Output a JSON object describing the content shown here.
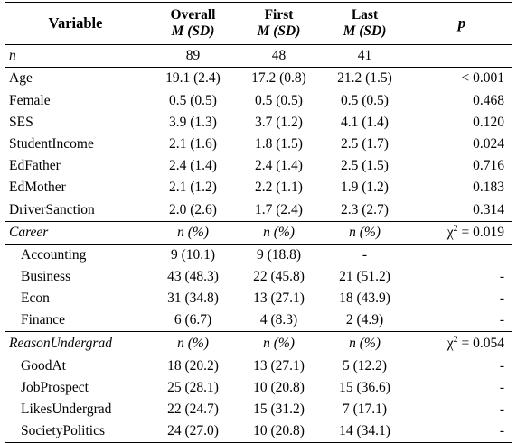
{
  "header": {
    "variable": "Variable",
    "overall": "Overall",
    "first": "First",
    "last": "Last",
    "p": "p",
    "msd": "M (SD)"
  },
  "n_row": {
    "label": "n",
    "overall": "89",
    "first": "48",
    "last": "41",
    "p": ""
  },
  "continuous": [
    {
      "label": "Age",
      "overall": "19.1 (2.4)",
      "first": "17.2 (0.8)",
      "last": "21.2 (1.5)",
      "p": "< 0.001"
    },
    {
      "label": "Female",
      "overall": "0.5 (0.5)",
      "first": "0.5 (0.5)",
      "last": "0.5 (0.5)",
      "p": "0.468"
    },
    {
      "label": "SES",
      "overall": "3.9 (1.3)",
      "first": "3.7 (1.2)",
      "last": "4.1 (1.4)",
      "p": "0.120"
    },
    {
      "label": "StudentIncome",
      "overall": "2.1 (1.6)",
      "first": "1.8 (1.5)",
      "last": "2.5 (1.7)",
      "p": "0.024"
    },
    {
      "label": "EdFather",
      "overall": "2.4 (1.4)",
      "first": "2.4 (1.4)",
      "last": "2.5 (1.5)",
      "p": "0.716"
    },
    {
      "label": "EdMother",
      "overall": "2.1 (1.2)",
      "first": "2.2 (1.1)",
      "last": "1.9 (1.2)",
      "p": "0.183"
    },
    {
      "label": "DriverSanction",
      "overall": "2.0 (2.6)",
      "first": "1.7 (2.4)",
      "last": "2.3 (2.7)",
      "p": "0.314"
    }
  ],
  "career": {
    "label": "Career",
    "overall": "n (%)",
    "first": "n (%)",
    "last": "n (%)",
    "p_prefix": "χ",
    "p_sup": "2",
    "p_suffix": " = 0.019",
    "rows": [
      {
        "label": "Accounting",
        "overall": "9 (10.1)",
        "first": "9 (18.8)",
        "last": "-",
        "p": ""
      },
      {
        "label": "Business",
        "overall": "43 (48.3)",
        "first": "22 (45.8)",
        "last": "21 (51.2)",
        "p": "-"
      },
      {
        "label": "Econ",
        "overall": "31 (34.8)",
        "first": "13 (27.1)",
        "last": "18 (43.9)",
        "p": "-"
      },
      {
        "label": "Finance",
        "overall": "6 (6.7)",
        "first": "4 (8.3)",
        "last": "2 (4.9)",
        "p": "-"
      }
    ]
  },
  "reason": {
    "label": "ReasonUndergrad",
    "overall": "n (%)",
    "first": "n (%)",
    "last": "n (%)",
    "p_prefix": "χ",
    "p_sup": "2",
    "p_suffix": " = 0.054",
    "rows": [
      {
        "label": "GoodAt",
        "overall": "18 (20.2)",
        "first": "13 (27.1)",
        "last": "5 (12.2)",
        "p": "-"
      },
      {
        "label": "JobProspect",
        "overall": "25 (28.1)",
        "first": "10 (20.8)",
        "last": "15 (36.6)",
        "p": "-"
      },
      {
        "label": "LikesUndergrad",
        "overall": "22 (24.7)",
        "first": "15 (31.2)",
        "last": "7 (17.1)",
        "p": "-"
      },
      {
        "label": "SocietyPolitics",
        "overall": "24 (27.0)",
        "first": "10 (20.8)",
        "last": "14 (34.1)",
        "p": "-"
      }
    ]
  }
}
